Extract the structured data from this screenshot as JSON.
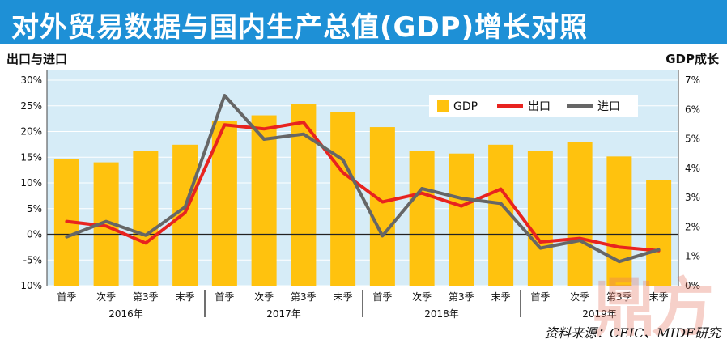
{
  "title": "对外贸易数据与国内生产总值(GDP)增长对照",
  "left_axis_label": "出口与进口",
  "right_axis_label": "GDP成长",
  "source": "资料来源：CEIC、MIDF研究",
  "watermark": "鼎方",
  "colors": {
    "title_bg": "#1e90d6",
    "plot_bg": "#d6ecf7",
    "gdp": "#ffc20e",
    "export": "#e8231f",
    "import": "#666666"
  },
  "chart_data": {
    "type": "bar",
    "categories": [
      "首季",
      "次季",
      "第3季",
      "末季",
      "首季",
      "次季",
      "第3季",
      "末季",
      "首季",
      "次季",
      "第3季",
      "末季",
      "首季",
      "次季",
      "第3季",
      "末季"
    ],
    "groups": [
      "2016年",
      "2017年",
      "2018年",
      "2019年"
    ],
    "series": [
      {
        "name": "GDP",
        "type": "bar",
        "axis": "right",
        "values": [
          4.3,
          4.2,
          4.6,
          4.8,
          5.6,
          5.8,
          6.2,
          5.9,
          5.4,
          4.6,
          4.5,
          4.8,
          4.6,
          4.9,
          4.4,
          3.6
        ]
      },
      {
        "name": "出口",
        "type": "line",
        "axis": "left",
        "values": [
          2.5,
          1.6,
          -1.7,
          4.2,
          21.3,
          20.5,
          21.8,
          12.0,
          6.3,
          8.0,
          5.5,
          8.8,
          -1.5,
          -0.8,
          -2.5,
          -3.2
        ]
      },
      {
        "name": "进口",
        "type": "line",
        "axis": "left",
        "values": [
          -0.5,
          2.5,
          -0.2,
          5.3,
          27.0,
          18.5,
          19.5,
          14.5,
          -0.3,
          8.9,
          7.0,
          6.0,
          -2.7,
          -1.2,
          -5.3,
          -3.0
        ]
      }
    ],
    "left_axis": {
      "ticks": [
        "-10%",
        "-5%",
        "0%",
        "5%",
        "10%",
        "15%",
        "20%",
        "25%",
        "30%"
      ],
      "range": [
        -10,
        30
      ]
    },
    "right_axis": {
      "ticks": [
        "0%",
        "1%",
        "2%",
        "3%",
        "4%",
        "5%",
        "6%",
        "7%"
      ],
      "range": [
        0,
        7
      ]
    },
    "legend": [
      "GDP",
      "出口",
      "进口"
    ],
    "legend_position": "top-right",
    "grid": true
  }
}
